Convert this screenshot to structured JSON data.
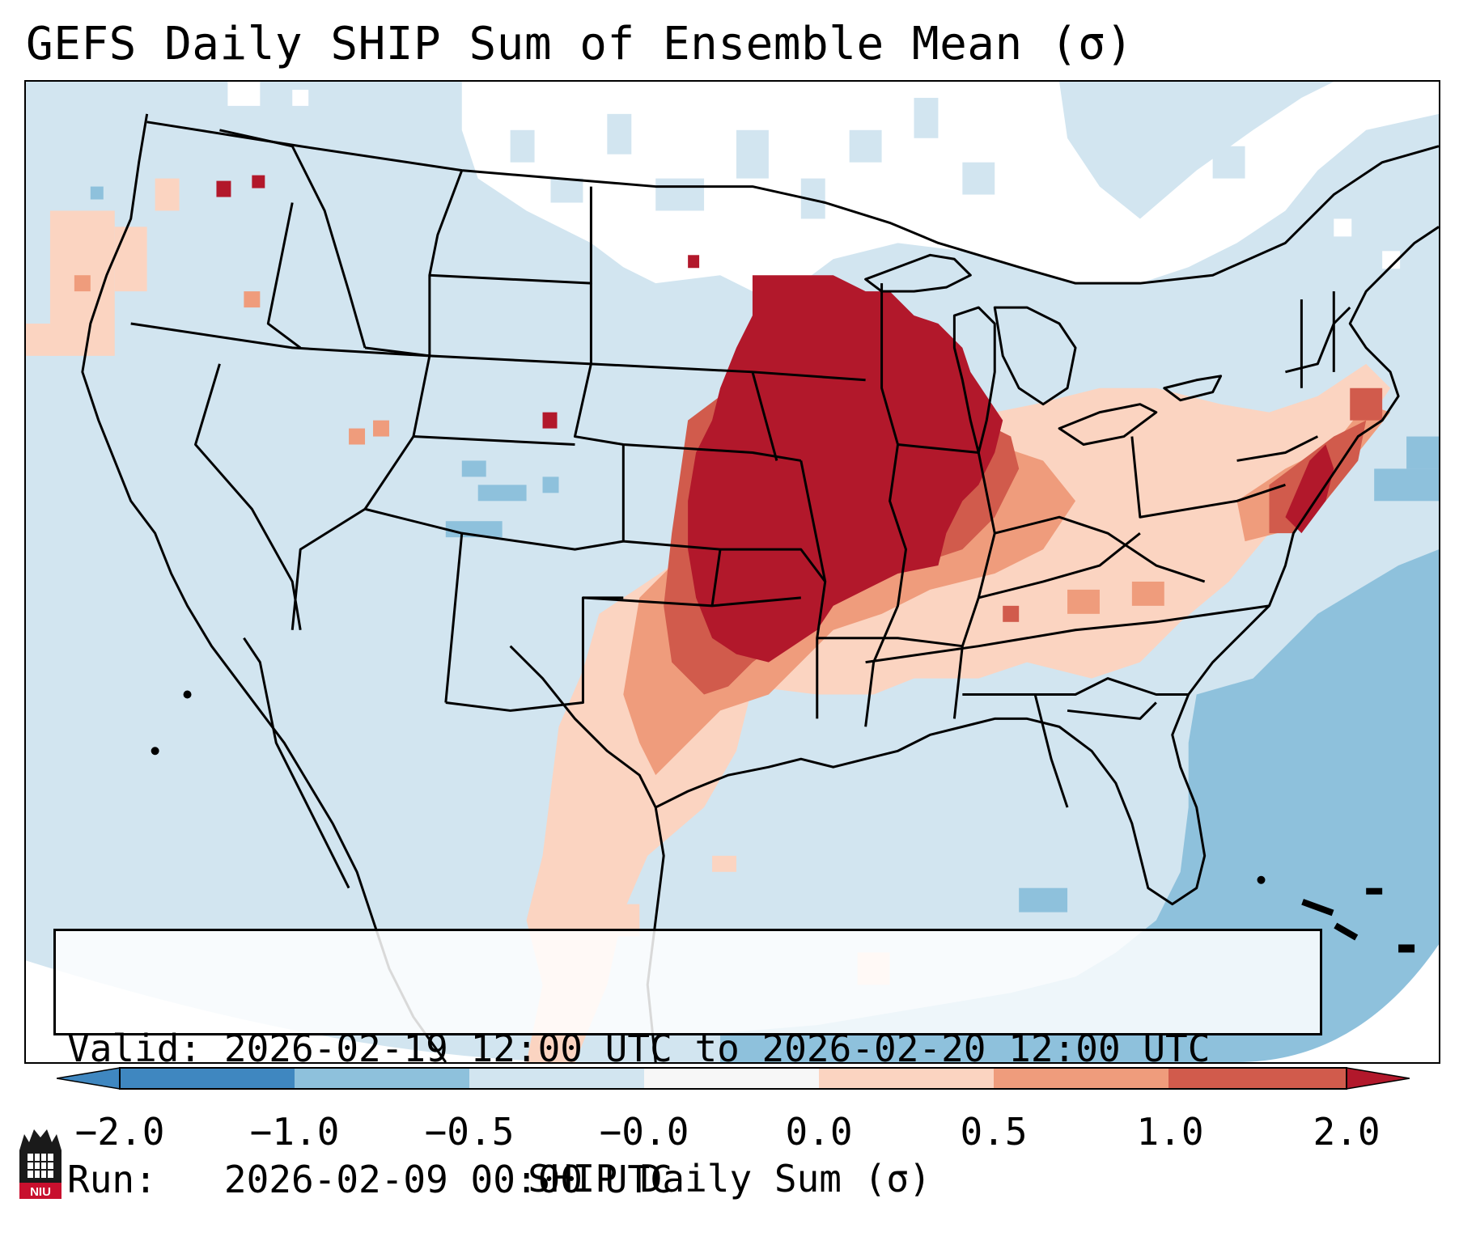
{
  "title": "GEFS Daily SHIP Sum of Ensemble Mean (σ)",
  "info": {
    "valid_label": "Valid:",
    "valid_value": "2026-02-19 12:00 UTC to 2026-02-20 12:00 UTC",
    "run_label": "Run:",
    "run_value": "2026-02-09 00:00 UTC"
  },
  "colorbar": {
    "label": "SHIP Daily Sum (σ)",
    "ticks": [
      "−2.0",
      "−1.0",
      "−0.5",
      "−0.0",
      "0.0",
      "0.5",
      "1.0",
      "2.0"
    ],
    "colors": [
      "#3f87c0",
      "#8ec1dc",
      "#d2e5f0",
      "#f7f7f7",
      "#fbd4c1",
      "#ef9c7c",
      "#d15b4c",
      "#b2182b"
    ],
    "extend": "both"
  },
  "map": {
    "region": "Continental United States",
    "colors": {
      "background_blue": "#d2e5f0",
      "light_red": "#fbd4c1",
      "mid_red": "#ef9c7c",
      "red": "#d15b4c",
      "dark_red": "#b2182b",
      "mid_blue": "#8ec1dc",
      "white": "#ffffff"
    }
  },
  "logo": {
    "text": "NIU"
  }
}
